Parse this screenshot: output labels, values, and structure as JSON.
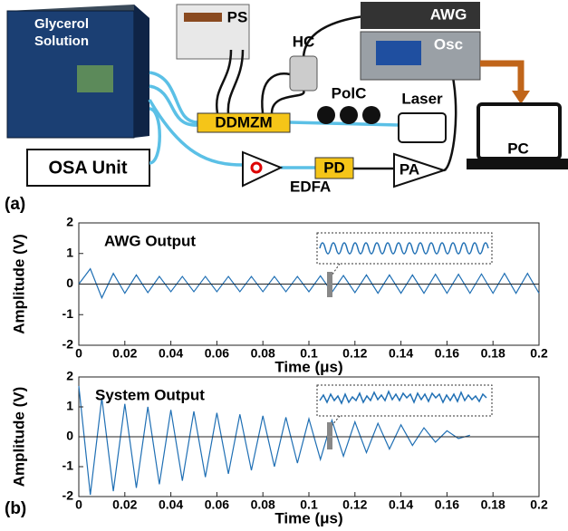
{
  "diagram": {
    "labels": {
      "glycerol": "Glycerol",
      "solution": "Solution",
      "osa": "OSA Unit",
      "ps": "PS",
      "hc": "HC",
      "awg": "AWG",
      "osc": "Osc",
      "pc": "PC",
      "ddmzm": "DDMZM",
      "polc": "PolC",
      "laser": "Laser",
      "edfa": "EDFA",
      "pd": "PD",
      "pa": "PA"
    },
    "panel_labels": [
      "(a)",
      "(b)"
    ]
  },
  "chart_data": [
    {
      "type": "line",
      "title": "AWG Output",
      "x_label": "Time (μs)",
      "y_label": "Amplitude (V)",
      "color": "#1f6fb4",
      "x": [
        0,
        0.005,
        0.01,
        0.015,
        0.02,
        0.025,
        0.03,
        0.035,
        0.04,
        0.045,
        0.05,
        0.055,
        0.06,
        0.065,
        0.07,
        0.075,
        0.08,
        0.085,
        0.09,
        0.095,
        0.1,
        0.105,
        0.11,
        0.115,
        0.12,
        0.125,
        0.13,
        0.135,
        0.14,
        0.145,
        0.15,
        0.155,
        0.16,
        0.165,
        0.17,
        0.175,
        0.18,
        0.185,
        0.19,
        0.195,
        0.2
      ],
      "values": [
        0,
        0.5,
        -0.45,
        0.35,
        -0.3,
        0.3,
        -0.28,
        0.25,
        -0.25,
        0.25,
        -0.25,
        0.25,
        -0.25,
        0.25,
        -0.25,
        0.25,
        -0.25,
        0.25,
        -0.25,
        0.25,
        -0.25,
        0.27,
        -0.27,
        0.28,
        -0.28,
        0.3,
        -0.3,
        0.3,
        -0.3,
        0.3,
        -0.3,
        0.32,
        -0.3,
        0.32,
        -0.3,
        0.33,
        -0.3,
        0.35,
        -0.3,
        0.35,
        -0.3
      ],
      "xlim": [
        0,
        0.2
      ],
      "xticks": [
        0,
        0.02,
        0.04,
        0.06,
        0.08,
        0.1,
        0.12,
        0.14,
        0.16,
        0.18,
        0.2
      ],
      "ylim": [
        -2,
        2
      ],
      "yticks": [
        -2,
        -1,
        0,
        1,
        2
      ]
    },
    {
      "type": "line",
      "title": "System Output",
      "x_label": "Time (μs)",
      "y_label": "Amplitude (V)",
      "color": "#1f6fb4",
      "x": [
        0,
        0.005,
        0.01,
        0.015,
        0.02,
        0.025,
        0.03,
        0.035,
        0.04,
        0.045,
        0.05,
        0.055,
        0.06,
        0.065,
        0.07,
        0.075,
        0.08,
        0.085,
        0.09,
        0.095,
        0.1,
        0.105,
        0.11,
        0.115,
        0.12,
        0.125,
        0.13,
        0.135,
        0.14,
        0.145,
        0.15,
        0.155,
        0.16,
        0.165,
        0.17
      ],
      "values": [
        1.7,
        -1.94,
        1.3,
        -1.82,
        1.1,
        -1.71,
        1.0,
        -1.59,
        0.9,
        -1.47,
        0.85,
        -1.35,
        0.8,
        -1.24,
        0.75,
        -1.12,
        0.7,
        -1.0,
        0.65,
        -0.88,
        0.6,
        -0.76,
        0.55,
        -0.65,
        0.5,
        -0.53,
        0.45,
        -0.41,
        0.4,
        -0.29,
        0.3,
        -0.18,
        0.2,
        -0.06,
        0.05
      ],
      "xlim": [
        0,
        0.2
      ],
      "xticks": [
        0,
        0.02,
        0.04,
        0.06,
        0.08,
        0.1,
        0.12,
        0.14,
        0.16,
        0.18,
        0.2
      ],
      "ylim": [
        -2,
        2
      ],
      "yticks": [
        -2,
        -1,
        0,
        1,
        2
      ]
    }
  ]
}
